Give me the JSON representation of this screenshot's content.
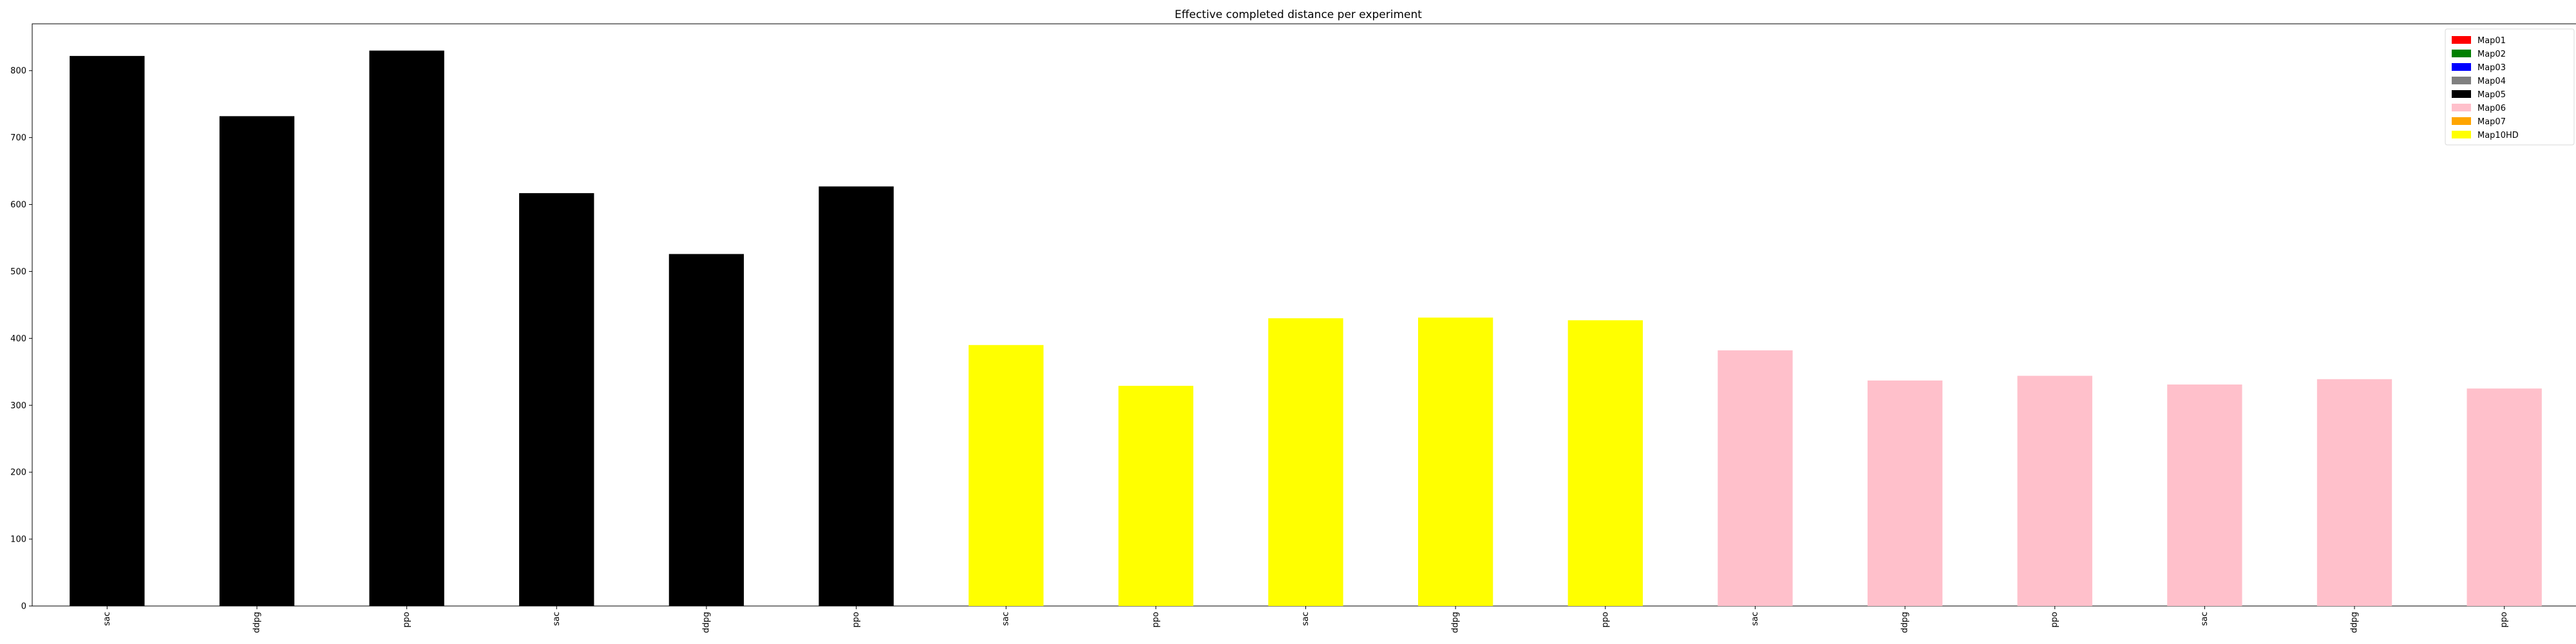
{
  "chart_data": {
    "type": "bar",
    "title": "Effective completed distance per experiment",
    "xlabel": "",
    "ylabel": "",
    "ylim": [
      0,
      870
    ],
    "yticks": [
      0,
      100,
      200,
      300,
      400,
      500,
      600,
      700,
      800
    ],
    "grid": false,
    "legend_position": "top-right",
    "categories": [
      "sac",
      "ddpg",
      "ppo",
      "sac",
      "ddpg",
      "ppo",
      "sac",
      "ppo",
      "sac",
      "ddpg",
      "ppo",
      "sac",
      "ddpg",
      "ppo",
      "sac",
      "ddpg",
      "ppo"
    ],
    "values": [
      822,
      732,
      830,
      617,
      526,
      627,
      390,
      329,
      430,
      431,
      427,
      382,
      337,
      344,
      331,
      339,
      325
    ],
    "bar_maps": [
      "Map05",
      "Map05",
      "Map05",
      "Map05",
      "Map05",
      "Map05",
      "Map10HD",
      "Map10HD",
      "Map10HD",
      "Map10HD",
      "Map10HD",
      "Map06",
      "Map06",
      "Map06",
      "Map06",
      "Map06",
      "Map06"
    ],
    "legend": [
      {
        "name": "Map01",
        "color": "#ff0000"
      },
      {
        "name": "Map02",
        "color": "#008000"
      },
      {
        "name": "Map03",
        "color": "#0000ff"
      },
      {
        "name": "Map04",
        "color": "#808080"
      },
      {
        "name": "Map05",
        "color": "#000000"
      },
      {
        "name": "Map06",
        "color": "#ffc0cb"
      },
      {
        "name": "Map07",
        "color": "#ffa500"
      },
      {
        "name": "Map10HD",
        "color": "#ffff00"
      }
    ]
  }
}
